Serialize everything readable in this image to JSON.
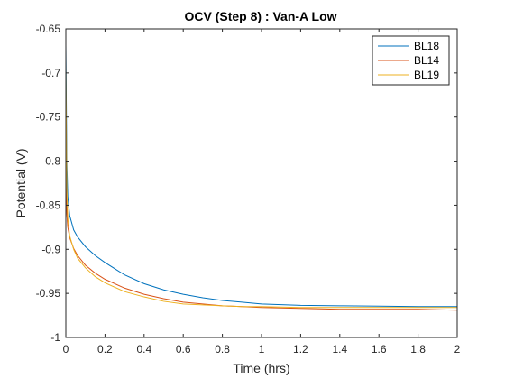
{
  "chart_data": {
    "type": "line",
    "title": "OCV (Step 8) : Van-A Low",
    "xlabel": "Time (hrs)",
    "ylabel": "Potential (V)",
    "xlim": [
      0,
      2
    ],
    "ylim": [
      -1,
      -0.65
    ],
    "xticks": [
      "0",
      "0.2",
      "0.4",
      "0.6",
      "0.8",
      "1",
      "1.2",
      "1.4",
      "1.6",
      "1.8",
      "2"
    ],
    "yticks": [
      "-0.65",
      "-0.7",
      "-0.75",
      "-0.8",
      "-0.85",
      "-0.9",
      "-0.95",
      "-1"
    ],
    "grid": false,
    "legend_position": "top-right",
    "series": [
      {
        "name": "BL18",
        "color": "#0072BD",
        "x": [
          0,
          0.005,
          0.01,
          0.02,
          0.04,
          0.06,
          0.1,
          0.15,
          0.2,
          0.3,
          0.4,
          0.5,
          0.6,
          0.7,
          0.8,
          0.9,
          1.0,
          1.2,
          1.4,
          1.6,
          1.8,
          2.0
        ],
        "y": [
          -0.668,
          -0.8,
          -0.84,
          -0.862,
          -0.878,
          -0.886,
          -0.897,
          -0.907,
          -0.915,
          -0.929,
          -0.939,
          -0.946,
          -0.951,
          -0.955,
          -0.958,
          -0.96,
          -0.962,
          -0.9635,
          -0.964,
          -0.9645,
          -0.965,
          -0.965
        ]
      },
      {
        "name": "BL14",
        "color": "#D95319",
        "x": [
          0,
          0.005,
          0.01,
          0.02,
          0.04,
          0.06,
          0.1,
          0.15,
          0.2,
          0.3,
          0.4,
          0.5,
          0.6,
          0.7,
          0.8,
          0.9,
          1.0,
          1.2,
          1.4,
          1.6,
          1.8,
          2.0
        ],
        "y": [
          -0.8,
          -0.86,
          -0.875,
          -0.887,
          -0.899,
          -0.907,
          -0.918,
          -0.927,
          -0.934,
          -0.944,
          -0.951,
          -0.956,
          -0.96,
          -0.962,
          -0.964,
          -0.965,
          -0.966,
          -0.967,
          -0.968,
          -0.968,
          -0.968,
          -0.969
        ]
      },
      {
        "name": "BL19",
        "color": "#EDB120",
        "x": [
          0,
          0.005,
          0.01,
          0.02,
          0.04,
          0.06,
          0.1,
          0.15,
          0.2,
          0.3,
          0.4,
          0.5,
          0.6,
          0.7,
          0.8,
          0.9,
          1.0,
          1.2,
          1.4,
          1.6,
          1.8,
          2.0
        ],
        "y": [
          -0.69,
          -0.83,
          -0.865,
          -0.885,
          -0.9,
          -0.91,
          -0.921,
          -0.931,
          -0.938,
          -0.948,
          -0.954,
          -0.959,
          -0.962,
          -0.963,
          -0.964,
          -0.965,
          -0.965,
          -0.966,
          -0.966,
          -0.966,
          -0.966,
          -0.966
        ]
      }
    ]
  }
}
